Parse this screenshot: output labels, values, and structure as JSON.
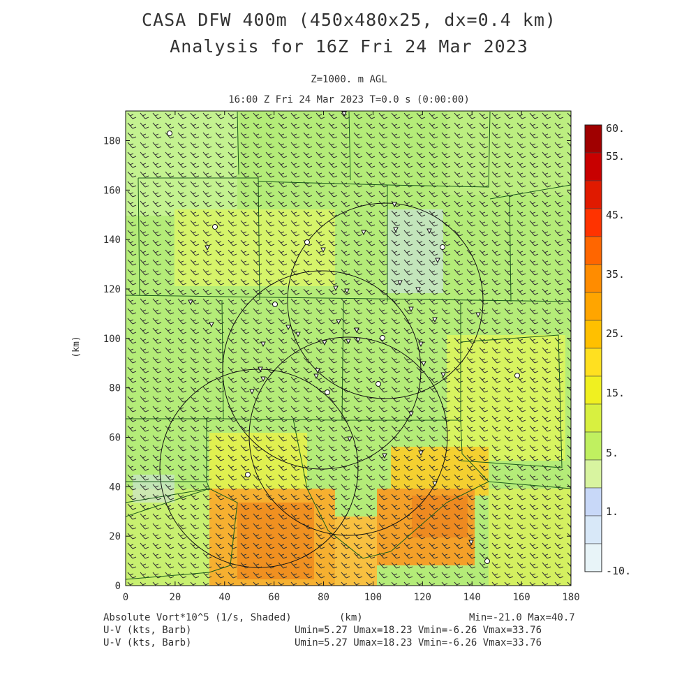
{
  "title_line1": "CASA DFW 400m (450x480x25, dx=0.4 km)",
  "title_line2": "Analysis for 16Z Fri 24 Mar 2023",
  "level_label": "Z=1000. m AGL",
  "time_label": "16:00 Z Fri 24 Mar 2023    T=0.0 s (0:00:00)",
  "y_axis_label": "(km)",
  "x_axis_label": "(km)",
  "x_ticks": [
    "0",
    "20",
    "40",
    "60",
    "80",
    "100",
    "120",
    "140",
    "160",
    "180"
  ],
  "y_ticks": [
    "0",
    "20",
    "40",
    "60",
    "80",
    "100",
    "120",
    "140",
    "160",
    "180"
  ],
  "colorbar": {
    "labels": [
      "60.",
      "55.",
      "45.",
      "35.",
      "25.",
      "15.",
      "5.",
      "1.",
      "-10."
    ],
    "colors": [
      "#a00000",
      "#c80000",
      "#e01a00",
      "#ff3300",
      "#ff6600",
      "#ff8c00",
      "#ffa500",
      "#ffc000",
      "#ffe020",
      "#f0f020",
      "#d8f040",
      "#c0f060",
      "#d8f4a0",
      "#c8d8f8",
      "#d8e8f8",
      "#e8f4f8"
    ]
  },
  "footer": {
    "field_label": "Absolute Vort*10^5 (1/s, Shaded)",
    "units_label": "(km)",
    "minmax": "Min=-21.0 Max=40.7",
    "vector1_label": "U-V (kts, Barb)",
    "vector1_stats": "Umin=5.27 Umax=18.23 Vmin=-6.26 Vmax=33.76",
    "vector2_label": "U-V (kts, Barb)",
    "vector2_stats": "Umin=5.27 Umax=18.23 Vmin=-6.26 Vmax=33.76"
  }
}
